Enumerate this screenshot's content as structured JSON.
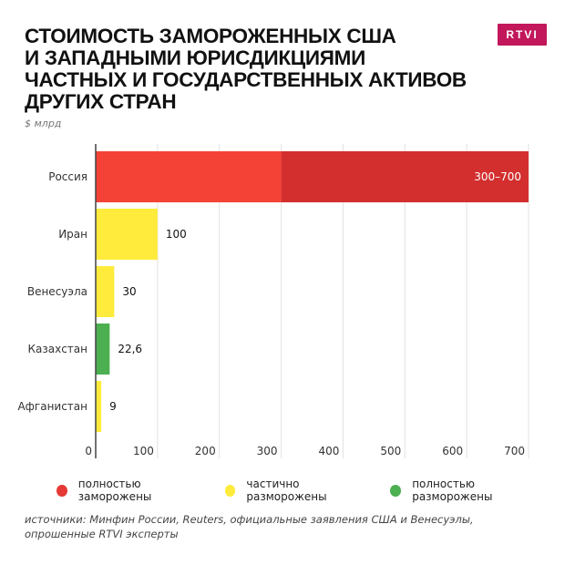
{
  "title_lines": [
    "СТОИМОСТЬ ЗАМОРОЖЕННЫХ США",
    "И ЗАПАДНЫМИ ЮРИСДИКЦИЯМИ",
    "ЧАСТНЫХ И ГОСУДАРСТВЕННЫХ АКТИВОВ",
    "ДРУГИХ СТРАН"
  ],
  "logo": "RTVI",
  "unit": "$ млрд",
  "legend": [
    {
      "label": "полностью заморожены",
      "color": "#e53935"
    },
    {
      "label": "частично разморожены",
      "color": "#ffeb3b"
    },
    {
      "label": "полностью разморожены",
      "color": "#4caf50"
    }
  ],
  "sources": [
    "источники: Минфин России, Reuters, официальные заявления США и Венесуэлы,",
    "опрошенные RTVI эксперты"
  ],
  "chart_data": {
    "type": "bar",
    "orientation": "horizontal",
    "categories": [
      "Россия",
      "Иран",
      "Венесуэла",
      "Казахстан",
      "Афганистан"
    ],
    "bars": [
      {
        "category": "Россия",
        "low": 300,
        "high": 700,
        "label": "300–700",
        "status": "полностью заморожены",
        "color": "#f44336",
        "range_color": "#d32f2f"
      },
      {
        "category": "Иран",
        "value": 100,
        "label": "100",
        "status": "частично разморожены",
        "color": "#ffeb3b"
      },
      {
        "category": "Венесуэла",
        "value": 30,
        "label": "30",
        "status": "частично разморожены",
        "color": "#ffeb3b"
      },
      {
        "category": "Казахстан",
        "value": 22.6,
        "label": "22,6",
        "status": "полностью разморожены",
        "color": "#4caf50"
      },
      {
        "category": "Афганистан",
        "value": 9,
        "label": "9",
        "status": "частично разморожены",
        "color": "#ffeb3b"
      }
    ],
    "xlim": [
      0,
      700
    ],
    "xticks": [
      0,
      100,
      200,
      300,
      400,
      500,
      600,
      700
    ],
    "grid": true
  }
}
